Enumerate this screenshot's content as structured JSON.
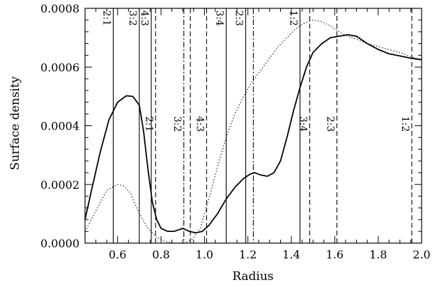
{
  "chart_data": {
    "type": "line",
    "xlabel": "Radius",
    "ylabel": "Surface density",
    "xlim": [
      0.45,
      2.0
    ],
    "ylim": [
      0.0,
      0.0008
    ],
    "x_ticks": [
      0.6,
      0.8,
      1.0,
      1.2,
      1.4,
      1.6,
      1.8,
      2.0
    ],
    "x_tick_labels": [
      "0.6",
      "0.8",
      "1.0",
      "1.2",
      "1.4",
      "1.6",
      "1.8",
      "2.0"
    ],
    "y_ticks": [
      0.0,
      0.0002,
      0.0004,
      0.0006,
      0.0008
    ],
    "y_tick_labels": [
      "0.0000",
      "0.0002",
      "0.0004",
      "0.0006",
      "0.0008"
    ],
    "grid": false,
    "legend": "none",
    "series": [
      {
        "style": "solid",
        "points": [
          [
            0.45,
            8e-05
          ],
          [
            0.48,
            0.00018
          ],
          [
            0.52,
            0.00031
          ],
          [
            0.56,
            0.00042
          ],
          [
            0.6,
            0.00048
          ],
          [
            0.64,
            0.000502
          ],
          [
            0.67,
            0.0005
          ],
          [
            0.7,
            0.00047
          ],
          [
            0.72,
            0.00038
          ],
          [
            0.74,
            0.00025
          ],
          [
            0.76,
            0.00014
          ],
          [
            0.78,
            8e-05
          ],
          [
            0.8,
            5e-05
          ],
          [
            0.83,
            4e-05
          ],
          [
            0.86,
            4e-05
          ],
          [
            0.9,
            5e-05
          ],
          [
            0.93,
            4e-05
          ],
          [
            0.96,
            3.5e-05
          ],
          [
            0.99,
            4e-05
          ],
          [
            1.02,
            6e-05
          ],
          [
            1.06,
            0.0001
          ],
          [
            1.1,
            0.00015
          ],
          [
            1.14,
            0.00019
          ],
          [
            1.18,
            0.00022
          ],
          [
            1.21,
            0.000235
          ],
          [
            1.23,
            0.00024
          ],
          [
            1.26,
            0.000232
          ],
          [
            1.29,
            0.000228
          ],
          [
            1.32,
            0.00024
          ],
          [
            1.35,
            0.00028
          ],
          [
            1.38,
            0.00036
          ],
          [
            1.41,
            0.00045
          ],
          [
            1.44,
            0.00053
          ],
          [
            1.47,
            0.0006
          ],
          [
            1.5,
            0.00065
          ],
          [
            1.54,
            0.00068
          ],
          [
            1.58,
            0.0007
          ],
          [
            1.62,
            0.000705
          ],
          [
            1.66,
            0.00071
          ],
          [
            1.7,
            0.000705
          ],
          [
            1.75,
            0.00068
          ],
          [
            1.8,
            0.00066
          ],
          [
            1.85,
            0.000645
          ],
          [
            1.9,
            0.000638
          ],
          [
            1.95,
            0.00063
          ],
          [
            2.0,
            0.000625
          ]
        ]
      },
      {
        "style": "dotted",
        "points": [
          [
            0.45,
            4e-05
          ],
          [
            0.5,
            0.00011
          ],
          [
            0.55,
            0.00018
          ],
          [
            0.6,
            0.0002
          ],
          [
            0.63,
            0.000195
          ],
          [
            0.66,
            0.00017
          ],
          [
            0.7,
            0.0001
          ],
          [
            0.74,
            5e-05
          ],
          [
            0.78,
            2e-05
          ],
          [
            0.82,
            5e-06
          ],
          [
            0.86,
            0.0
          ],
          [
            0.9,
            0.0
          ],
          [
            0.94,
            1e-05
          ],
          [
            0.98,
            5e-05
          ],
          [
            1.02,
            0.00015
          ],
          [
            1.06,
            0.00026
          ],
          [
            1.1,
            0.00036
          ],
          [
            1.14,
            0.00044
          ],
          [
            1.18,
            0.0005
          ],
          [
            1.22,
            0.00055
          ],
          [
            1.26,
            0.00059
          ],
          [
            1.3,
            0.00063
          ],
          [
            1.34,
            0.00067
          ],
          [
            1.38,
            0.0007
          ],
          [
            1.42,
            0.00073
          ],
          [
            1.46,
            0.00075
          ],
          [
            1.5,
            0.00076
          ],
          [
            1.54,
            0.000755
          ],
          [
            1.58,
            0.00074
          ],
          [
            1.62,
            0.00072
          ],
          [
            1.66,
            0.000705
          ],
          [
            1.7,
            0.000695
          ],
          [
            1.75,
            0.00068
          ],
          [
            1.8,
            0.00067
          ],
          [
            1.85,
            0.00066
          ],
          [
            1.9,
            0.00065
          ],
          [
            1.95,
            0.000635
          ],
          [
            2.0,
            0.000625
          ]
        ]
      }
    ],
    "resonance_lines": [
      {
        "x": 0.58,
        "style": "solid",
        "label": "2:1",
        "label_row": "top"
      },
      {
        "x": 0.7,
        "style": "solid",
        "label": "3:2",
        "label_row": "top"
      },
      {
        "x": 0.755,
        "style": "solid",
        "label": "4:3",
        "label_row": "top"
      },
      {
        "x": 1.1,
        "style": "solid",
        "label": "3:4",
        "label_row": "top"
      },
      {
        "x": 1.19,
        "style": "solid",
        "label": "2:3",
        "label_row": "top"
      },
      {
        "x": 1.44,
        "style": "solid",
        "label": "1:2",
        "label_row": "top"
      },
      {
        "x": 0.775,
        "style": "dashed",
        "label": "2:1",
        "label_row": "middle"
      },
      {
        "x": 0.905,
        "style": "dashdot",
        "label": "3:2",
        "label_row": "middle"
      },
      {
        "x": 0.935,
        "style": "dashed",
        "label": "",
        "label_row": "none"
      },
      {
        "x": 1.01,
        "style": "dashed",
        "label": "4:3",
        "label_row": "middle"
      },
      {
        "x": 1.225,
        "style": "dashdot",
        "label": "",
        "label_row": "none"
      },
      {
        "x": 1.485,
        "style": "dashed",
        "label": "3:4",
        "label_row": "middle"
      },
      {
        "x": 1.61,
        "style": "dashed",
        "label": "2:3",
        "label_row": "middle"
      },
      {
        "x": 1.955,
        "style": "dashed",
        "label": "1:2",
        "label_row": "middle"
      }
    ]
  }
}
